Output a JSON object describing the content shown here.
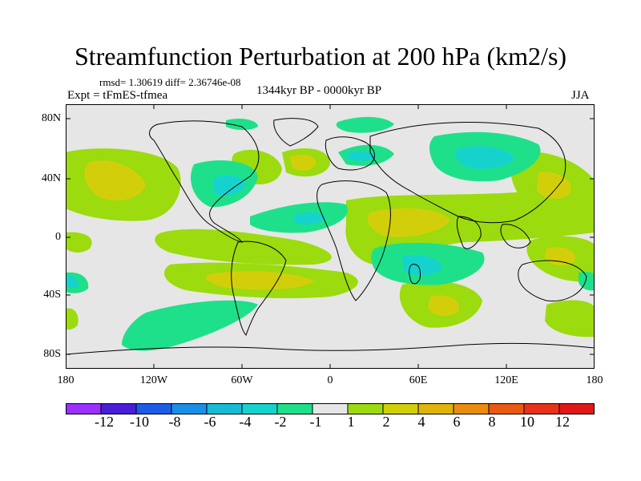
{
  "title": "Streamfunction Perturbation at 200 hPa (km2/s)",
  "stats": "rmsd= 1.30619 diff= 2.36746e-08",
  "experiment": "Expt = tFmES-tfmea",
  "period": "1344kyr BP - 0000kyr BP",
  "season": "JJA",
  "y_axis_labels": [
    "80N",
    "40N",
    "0",
    "40S",
    "80S"
  ],
  "x_axis_labels": [
    "180",
    "120W",
    "60W",
    "0",
    "60E",
    "120E",
    "180"
  ],
  "colorbar": {
    "labels": [
      "-12",
      "-10",
      "-8",
      "-6",
      "-4",
      "-2",
      "-1",
      "1",
      "2",
      "4",
      "6",
      "8",
      "10",
      "12"
    ],
    "colors": [
      "#9b30ff",
      "#4a1ed8",
      "#1c5ce6",
      "#1a8fe8",
      "#16bcd6",
      "#15d3cc",
      "#1fe08a",
      "#e6e6e6",
      "#9cdb0e",
      "#d2cf0a",
      "#e0b40a",
      "#ea8c0e",
      "#ea5a12",
      "#e8321a",
      "#e01818"
    ]
  },
  "background_color": "#e6e6e6",
  "frame_color": "#000000"
}
